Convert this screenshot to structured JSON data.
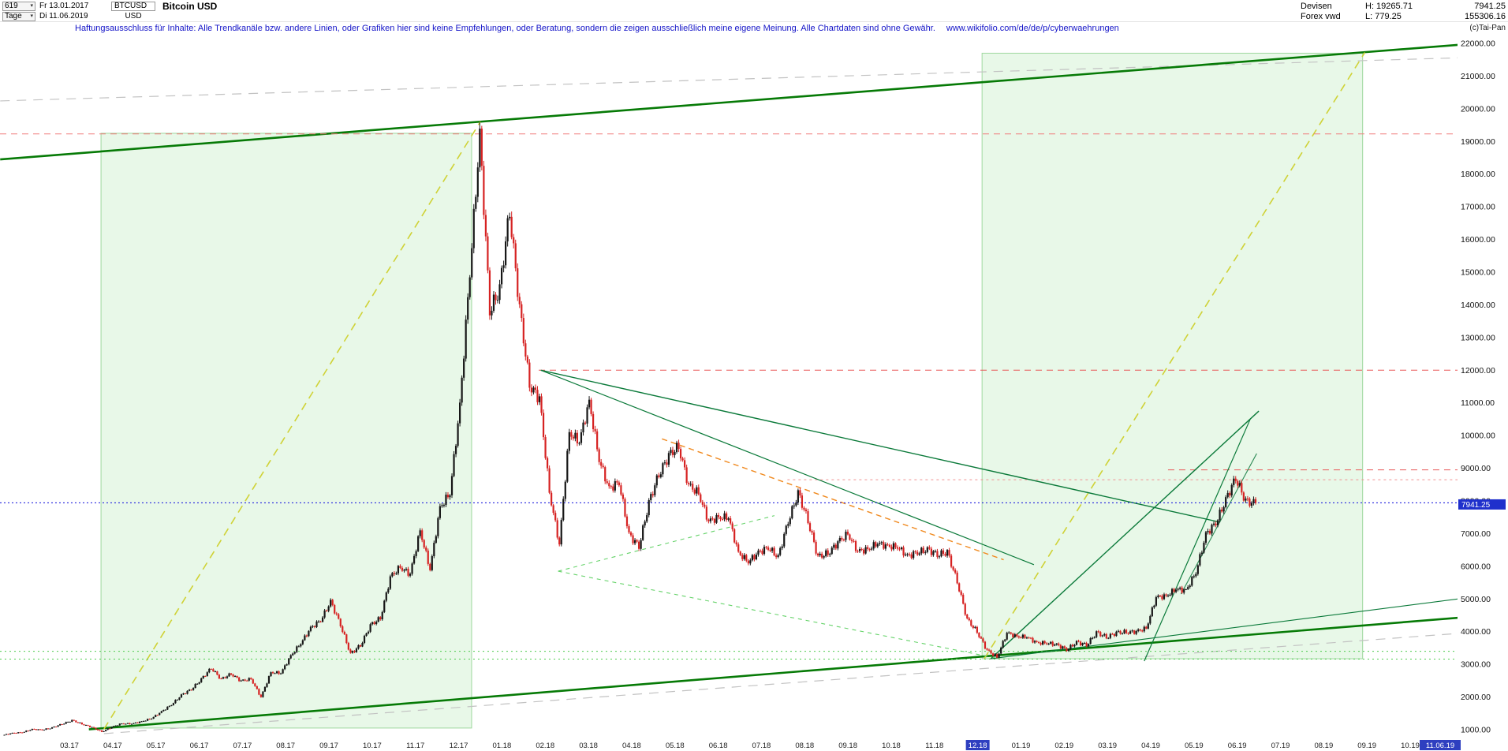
{
  "header": {
    "bars_count": "619",
    "start_date": "Fr 13.01.2017",
    "symbol": "BTCUSD",
    "title": "Bitcoin USD",
    "period": "Tage",
    "end_date": "Di 11.06.2019",
    "currency": "USD",
    "exchange": "Devisen",
    "feed": "Forex vwd",
    "high_label": "H: 19265.71",
    "low_label": "L: 779.25",
    "last_price": "7941.25",
    "volume": "155306.16",
    "copyright": "(c)Tai-Pan"
  },
  "disclaimer": {
    "text": "Haftungsausschluss für Inhalte: Alle Trendkanäle bzw. andere Linien, oder Grafiken hier sind keine Empfehlungen, oder Beratung, sondern die zeigen ausschließlich meine eigene Meinung. Alle Chartdaten sind ohne Gewähr.",
    "link": "www.wikifolio.com/de/de/p/cyberwaehrungen"
  },
  "axes": {
    "y_ticks": [
      "22000.00",
      "21000.00",
      "20000.00",
      "19000.00",
      "18000.00",
      "17000.00",
      "16000.00",
      "15000.00",
      "14000.00",
      "13000.00",
      "12000.00",
      "11000.00",
      "10000.00",
      "9000.00",
      "8000.00",
      "7000.00",
      "6000.00",
      "5000.00",
      "4000.00",
      "3000.00",
      "2000.00",
      "1000.00"
    ],
    "x_ticks": [
      "03.17",
      "04.17",
      "05.17",
      "06.17",
      "07.17",
      "08.17",
      "09.17",
      "10.17",
      "11.17",
      "12.17",
      "01.18",
      "02.18",
      "03.18",
      "04.18",
      "05.18",
      "06.18",
      "07.18",
      "08.18",
      "09.18",
      "10.18",
      "11.18",
      "12.18",
      "01.19",
      "02.19",
      "03.19",
      "04.19",
      "05.19",
      "06.19",
      "07.19",
      "08.19",
      "09.19",
      "10.19"
    ],
    "highlighted_x_tick": "12.18",
    "last_date_label": "11.06.19",
    "price_tag": "7941.25"
  },
  "chart_data": {
    "type": "candlestick",
    "title": "Bitcoin USD",
    "symbol": "BTCUSD",
    "timeframe": "daily",
    "date_range": [
      "13.01.2017",
      "11.06.2019"
    ],
    "period_high": 19265.71,
    "period_low": 779.25,
    "last_close": 7941.25,
    "ylim": [
      686,
      22100
    ],
    "y_step": 1000,
    "weekly_start": "2017-01-13",
    "weekly_step_days": 7,
    "weekly_closes": [
      830,
      895,
      920,
      1010,
      1000,
      1055,
      1180,
      1280,
      1180,
      1070,
      940,
      1080,
      1190,
      1180,
      1250,
      1350,
      1550,
      1770,
      2050,
      2250,
      2530,
      2900,
      2530,
      2720,
      2480,
      2560,
      1990,
      2760,
      2730,
      3260,
      3650,
      4100,
      4360,
      4900,
      4230,
      3300,
      3600,
      4170,
      4430,
      5640,
      5990,
      5750,
      7100,
      5900,
      7790,
      8250,
      10880,
      15050,
      19100,
      13900,
      14400,
      16950,
      13830,
      11600,
      11100,
      8300,
      6650,
      10100,
      9810,
      11020,
      9280,
      8350,
      8600,
      6930,
      6640,
      7900,
      8860,
      9340,
      9700,
      8440,
      8250,
      7360,
      7500,
      7500,
      6400,
      6150,
      6400,
      6600,
      6250,
      7410,
      8200,
      7430,
      6250,
      6420,
      6710,
      7010,
      6450,
      6520,
      6710,
      6600,
      6610,
      6290,
      6450,
      6480,
      6390,
      6400,
      5560,
      4350,
      4010,
      3420,
      3220,
      3960,
      3850,
      3840,
      3650,
      3660,
      3590,
      3460,
      3660,
      3610,
      3950,
      3850,
      3950,
      4000,
      3990,
      4110,
      5050,
      5090,
      5310,
      5250,
      5830,
      6950,
      7360,
      7990,
      8750,
      7950,
      7941.25
    ],
    "colors": {
      "up": "#161616",
      "down": "#d62222",
      "tag_bg": "#1f30cc",
      "highlight_bg": "#2e3fc0",
      "disclaimer_blue": "#1414c8",
      "channel_green": "#067a06",
      "band_green_fill": "rgba(80,200,80,0.13)"
    },
    "overlays": [
      {
        "name": "bull-zone-2017",
        "type": "band",
        "m1": 0.73,
        "m2": 9.3,
        "p1": 1050,
        "p2": 19250,
        "fill": "rgba(80,200,80,0.13)",
        "stroke": "rgba(0,150,0,0.35)"
      },
      {
        "name": "bull-zone-2019",
        "type": "band",
        "m1": 21.1,
        "m2": 29.9,
        "p1": 3170,
        "p2": 21700,
        "fill": "rgba(80,200,80,0.13)",
        "stroke": "rgba(0,150,0,0.35)"
      },
      {
        "name": "gray-channel-top",
        "type": "line",
        "m1": -1.6,
        "p1": 20240,
        "m2": 32.15,
        "p2": 21560,
        "color": "#c2c2c2",
        "w": 1.2,
        "dash": "12,9"
      },
      {
        "name": "gray-channel-bottom",
        "type": "line",
        "m1": 0.8,
        "p1": 880,
        "m2": 32.15,
        "p2": 3950,
        "color": "#c2c2c2",
        "w": 1.2,
        "dash": "12,9"
      },
      {
        "name": "channel-support",
        "type": "line",
        "m1": 0.45,
        "p1": 1010,
        "m2": 32.15,
        "p2": 4430,
        "color": "#067a06",
        "w": 2.6
      },
      {
        "name": "channel-resistance",
        "type": "line",
        "m1": -1.6,
        "p1": 18450,
        "m2": 32.15,
        "p2": 21960,
        "color": "#067a06",
        "w": 2.6
      },
      {
        "name": "rally-2017-trend",
        "type": "line",
        "m1": 0.8,
        "p1": 1020,
        "m2": 9.5,
        "p2": 19600,
        "color": "#cfd236",
        "w": 1.6,
        "dash": "10,7"
      },
      {
        "name": "rally-2019-trend",
        "type": "line",
        "m1": 21.15,
        "p1": 3170,
        "m2": 29.95,
        "p2": 21720,
        "color": "#cfd236",
        "w": 1.6,
        "dash": "10,7"
      },
      {
        "name": "ath-resistance",
        "type": "hline",
        "p": 19230,
        "m1": -1.605,
        "m2": 32.15,
        "color": "#f07b7b",
        "w": 1,
        "dash": "8,6"
      },
      {
        "name": "res-12000",
        "type": "hline",
        "p": 12000,
        "m1": 10.85,
        "m2": 32.15,
        "color": "#e85555",
        "w": 1,
        "dash": "8,6"
      },
      {
        "name": "res-8650",
        "type": "hline",
        "p": 8650,
        "m1": 16.6,
        "m2": 32.15,
        "color": "#f09090",
        "w": 1,
        "dash": "3,4"
      },
      {
        "name": "res-8950",
        "type": "hline",
        "p": 8950,
        "m1": 25.4,
        "m2": 32.15,
        "color": "#e85555",
        "w": 1,
        "dash": "8,6"
      },
      {
        "name": "sup-3400",
        "type": "hline",
        "p": 3400,
        "m1": -1.605,
        "m2": 32.15,
        "color": "#4ecb4e",
        "w": 1,
        "dash": "2,4"
      },
      {
        "name": "sup-3160",
        "type": "hline",
        "p": 3160,
        "m1": -1.605,
        "m2": 32.15,
        "color": "#4ecb4e",
        "w": 1,
        "dash": "2,4"
      },
      {
        "name": "downtrend-2018",
        "type": "line",
        "m1": 10.9,
        "p1": 12000,
        "m2": 26.6,
        "p2": 7350,
        "color": "#0b7a3a",
        "w": 1.4
      },
      {
        "name": "downtrend-2018-b",
        "type": "line",
        "m1": 10.9,
        "p1": 12000,
        "m2": 22.3,
        "p2": 6050,
        "color": "#0b7a3a",
        "w": 1.2
      },
      {
        "name": "downtrend-orange",
        "type": "line",
        "m1": 13.7,
        "p1": 9900,
        "m2": 21.6,
        "p2": 6200,
        "color": "#f08a20",
        "w": 1.4,
        "dash": "7,5"
      },
      {
        "name": "desc-support-2018",
        "type": "line",
        "m1": 11.3,
        "p1": 5850,
        "m2": 21.4,
        "p2": 3200,
        "color": "#66d36a",
        "w": 1.1,
        "dash": "5,5"
      },
      {
        "name": "asc-mid-2018",
        "type": "line",
        "m1": 11.3,
        "p1": 5850,
        "m2": 16.3,
        "p2": 7550,
        "color": "#66d36a",
        "w": 1.1,
        "dash": "5,5"
      },
      {
        "name": "uptrend-2019",
        "type": "line",
        "m1": 21.3,
        "p1": 3170,
        "m2": 27.5,
        "p2": 10750,
        "color": "#0b7a3a",
        "w": 1.4
      },
      {
        "name": "uptrend-2019-steep",
        "type": "line",
        "m1": 24.85,
        "p1": 3100,
        "m2": 27.3,
        "p2": 10500,
        "color": "#0b7a3a",
        "w": 1.2
      },
      {
        "name": "uptrend-2019-minor",
        "type": "line",
        "m1": 25.7,
        "p1": 5150,
        "m2": 27.45,
        "p2": 9450,
        "color": "#2e8b57",
        "w": 1.1
      },
      {
        "name": "uptrend-2019-gentle",
        "type": "line",
        "m1": 21.3,
        "p1": 3170,
        "m2": 32.1,
        "p2": 5000,
        "color": "#0b7a3a",
        "w": 1.1
      },
      {
        "name": "current-price-line",
        "type": "hline",
        "p": 7941.25,
        "m1": -1.605,
        "m2": 32.15,
        "color": "#2222dd",
        "w": 1.2,
        "dash": "2,3"
      }
    ]
  }
}
